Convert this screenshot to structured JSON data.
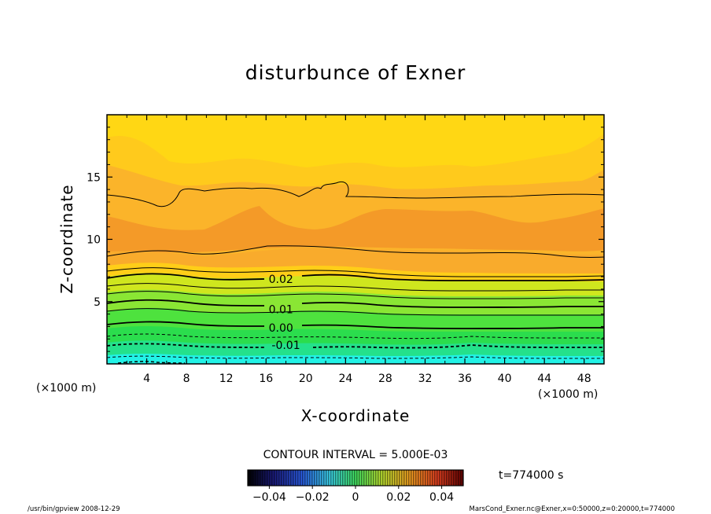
{
  "chart_data": {
    "type": "contour",
    "title": "disturbunce of Exner",
    "xlabel": "X-coordinate",
    "ylabel": "Z-coordinate",
    "x_unit_left": "(×1000 m)",
    "x_unit_right": "(×1000 m)",
    "xlim": [
      0,
      50
    ],
    "ylim": [
      0,
      20
    ],
    "x_ticks": [
      4,
      8,
      12,
      16,
      20,
      24,
      28,
      32,
      36,
      40,
      44,
      48
    ],
    "y_ticks": [
      5,
      10,
      15
    ],
    "contour_labels": [
      {
        "text": "0.02",
        "x": 17.5,
        "y": 6.8
      },
      {
        "text": "0.01",
        "x": 17.5,
        "y": 4.4
      },
      {
        "text": "0.00",
        "x": 17.5,
        "y": 2.9
      },
      {
        "text": "-0.01",
        "x": 18.0,
        "y": 1.5
      }
    ],
    "contour_interval_text": "CONTOUR INTERVAL = 5.000E-03",
    "time_text": "t=774000 s",
    "colorbar": {
      "range": [
        -0.05,
        0.05
      ],
      "tick_values": [
        -0.04,
        -0.02,
        0,
        0.02,
        0.04
      ],
      "tick_labels": [
        "−0.04",
        "−0.02",
        "0",
        "0.02",
        "0.04"
      ]
    },
    "footer_left": "/usr/bin/gpview   2008-12-29",
    "footer_right": "MarsCond_Exner.nc@Exner,x=0:50000,z=0:20000,t=774000",
    "colors": {
      "bottom": "#22f2e6",
      "lower": "#2bdd4d",
      "mid": "#8ae634",
      "middle_upper": "#cfe61e",
      "upper": "#f7b22c",
      "peak": "#f39528",
      "top": "#ffdc0a"
    }
  }
}
